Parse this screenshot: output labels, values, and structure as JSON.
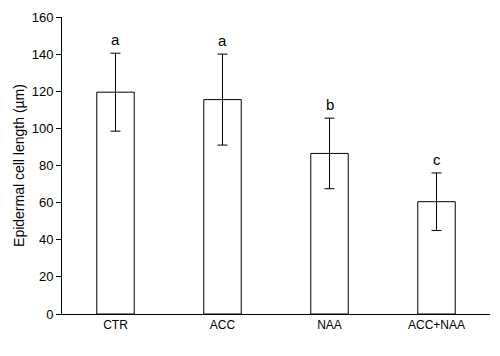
{
  "chart_data": {
    "type": "bar",
    "y_label": "Epidermal cell length (µm)",
    "categories": [
      "CTR",
      "ACC",
      "NAA",
      "ACC+NAA"
    ],
    "values": [
      119.5,
      115.5,
      86.5,
      60.5
    ],
    "errors": [
      21,
      24.5,
      19,
      15.5
    ],
    "annotations": [
      "a",
      "a",
      "b",
      "c"
    ],
    "color": "#ffffff",
    "ylim": [
      0,
      160
    ],
    "yticks": [
      0,
      20,
      40,
      60,
      80,
      100,
      120,
      140,
      160
    ],
    "grid": false
  }
}
